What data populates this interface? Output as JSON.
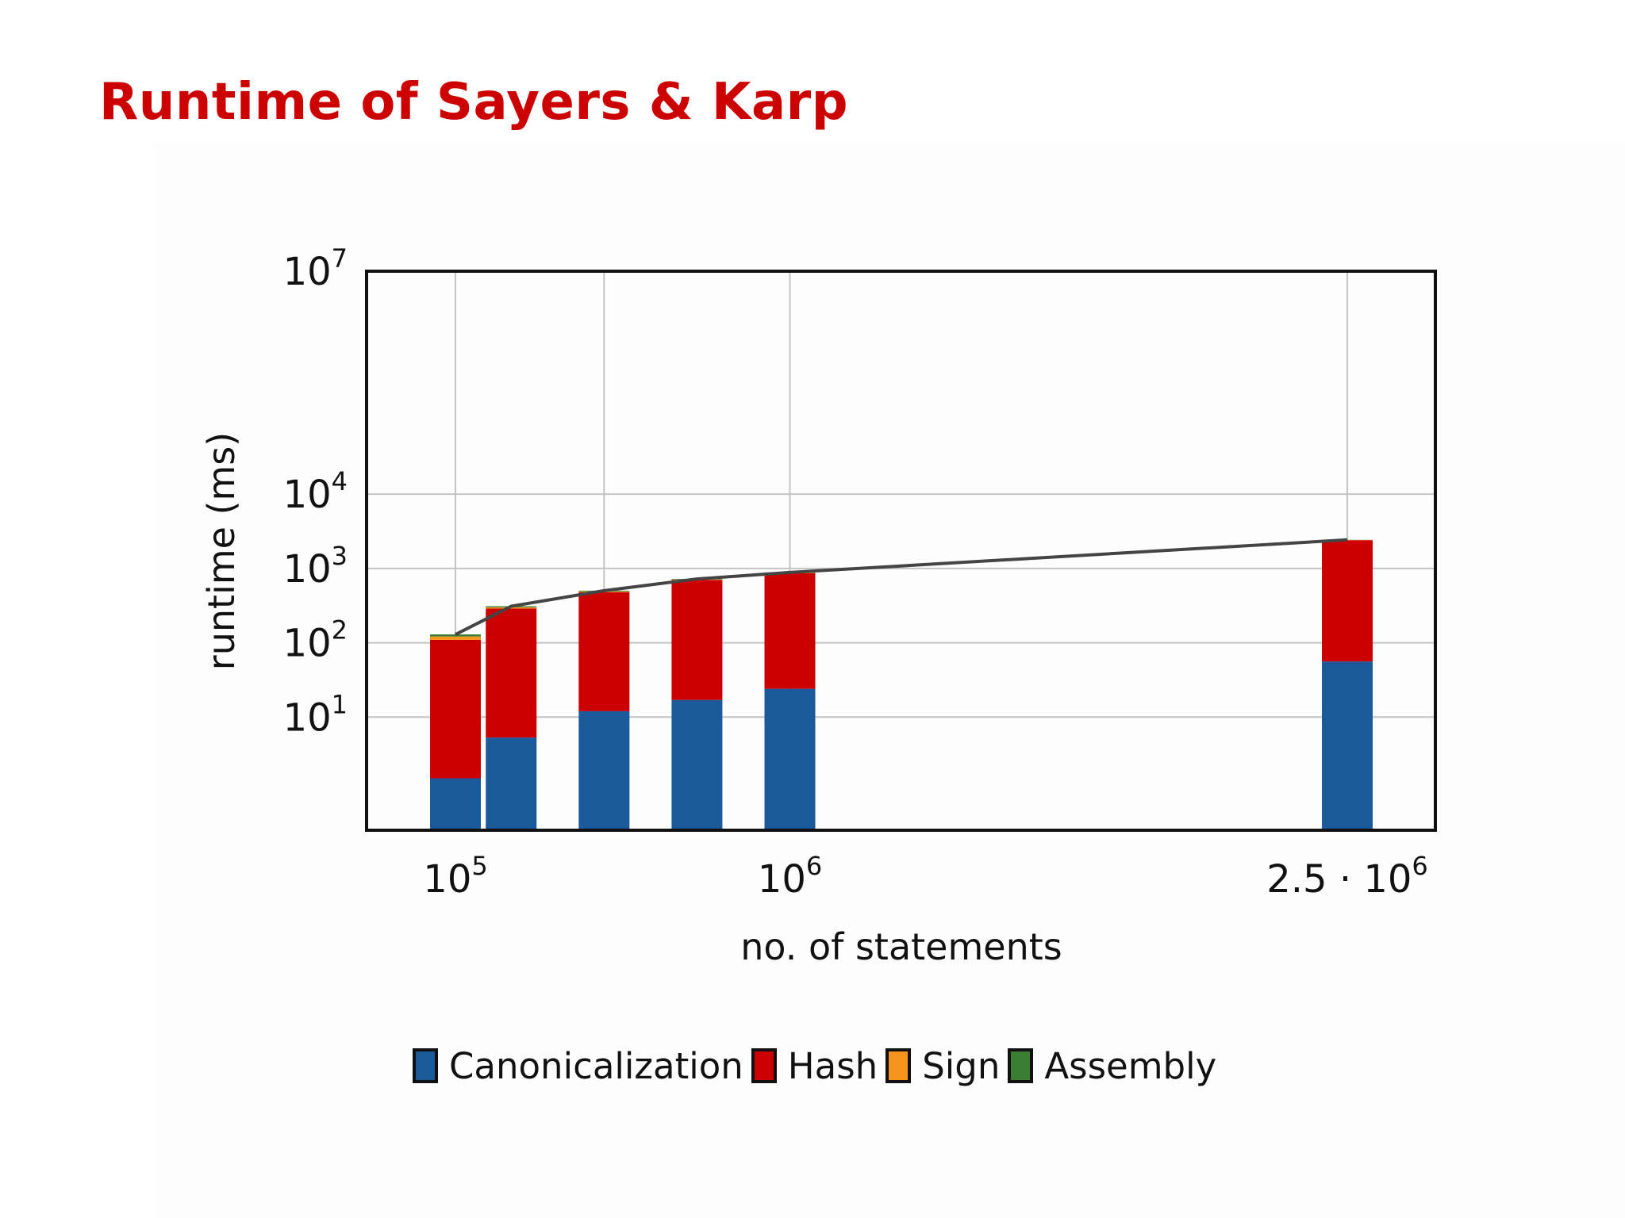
{
  "slide": {
    "title": "Runtime of Sayers & Karp"
  },
  "chart_data": {
    "type": "bar",
    "stacked": true,
    "title": "",
    "xlabel": "no. of statements",
    "ylabel": "runtime (ms)",
    "x_scale": "linear",
    "y_scale": "log",
    "xlim": [
      0,
      2800000
    ],
    "ylim": [
      0.3,
      10000000
    ],
    "grid": true,
    "legend_position": "bottom",
    "x_ticks": [
      {
        "value": 100000,
        "base": "10",
        "exp": "5",
        "prefix": ""
      },
      {
        "value": 1000000,
        "base": "10",
        "exp": "6",
        "prefix": ""
      },
      {
        "value": 2500000,
        "base": "10",
        "exp": "6",
        "prefix": "2.5 · "
      }
    ],
    "x_gridlines": [
      100000,
      500000,
      1000000,
      2500000
    ],
    "y_ticks": [
      {
        "value": 10,
        "base": "10",
        "exp": "1"
      },
      {
        "value": 100,
        "base": "10",
        "exp": "2"
      },
      {
        "value": 1000,
        "base": "10",
        "exp": "3"
      },
      {
        "value": 10000,
        "base": "10",
        "exp": "4"
      },
      {
        "value": 10000000,
        "base": "10",
        "exp": "7"
      }
    ],
    "x": [
      100000,
      250000,
      500000,
      750000,
      1000000,
      2500000
    ],
    "series": [
      {
        "name": "Canonicalization",
        "color": "#1a5a9a",
        "values": [
          1.5,
          5.3,
          12,
          17,
          24,
          56
        ]
      },
      {
        "name": "Hash",
        "color": "#cc0000",
        "values": [
          108,
          283,
          467,
          683,
          836,
          2344
        ]
      },
      {
        "name": "Sign",
        "color": "#f7941d",
        "values": [
          12,
          12,
          12,
          12,
          12,
          12
        ]
      },
      {
        "name": "Assembly",
        "color": "#3a7d32",
        "values": [
          8,
          10,
          11,
          11,
          12,
          13
        ]
      }
    ],
    "total_line": {
      "color": "#444444",
      "values": [
        129,
        310,
        502,
        723,
        884,
        2425
      ]
    }
  }
}
